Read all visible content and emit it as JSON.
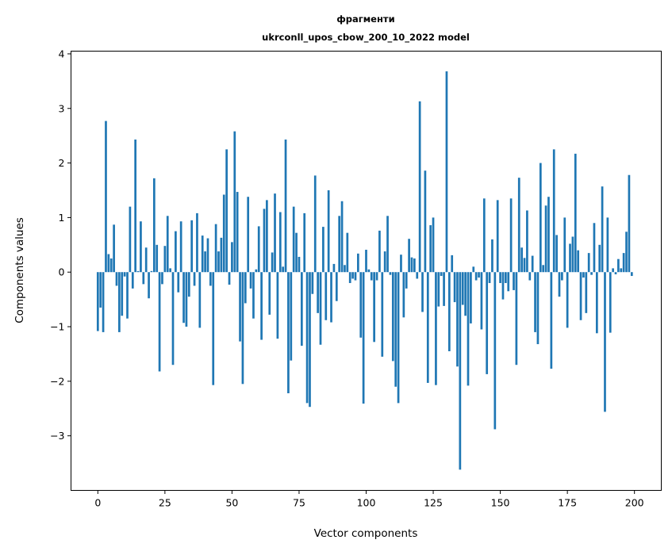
{
  "chart_data": {
    "type": "bar",
    "title": [
      "фрагменти",
      "ukrconll_upos_cbow_200_10_2022 model"
    ],
    "xlabel": "Vector components",
    "ylabel": "Components values",
    "xlim": [
      -10,
      210
    ],
    "ylim": [
      -4.0,
      4.05
    ],
    "xticks": [
      0,
      25,
      50,
      75,
      100,
      125,
      150,
      175,
      200
    ],
    "xtick_labels": [
      "0",
      "25",
      "50",
      "75",
      "100",
      "125",
      "150",
      "175",
      "200"
    ],
    "yticks": [
      -3,
      -2,
      -1,
      0,
      1,
      2,
      3,
      4
    ],
    "ytick_labels": [
      "−3",
      "−2",
      "−1",
      "0",
      "1",
      "2",
      "3",
      "4"
    ],
    "grid": false,
    "color": "#1f77b4",
    "bar_width": 0.8,
    "values": [
      -1.08,
      -0.65,
      -1.1,
      2.77,
      0.33,
      0.25,
      0.87,
      -0.25,
      -1.1,
      -0.8,
      -0.08,
      -0.85,
      1.2,
      -0.3,
      2.43,
      0.02,
      0.93,
      -0.22,
      0.45,
      -0.48,
      0.02,
      1.72,
      0.5,
      -1.82,
      -0.22,
      0.48,
      1.03,
      0.07,
      -1.7,
      0.75,
      -0.37,
      0.93,
      -0.93,
      -1.0,
      -0.45,
      0.95,
      -0.25,
      1.08,
      -1.02,
      0.67,
      0.38,
      0.62,
      -0.25,
      -2.07,
      0.88,
      0.38,
      0.63,
      1.42,
      2.25,
      -0.23,
      0.55,
      2.58,
      1.47,
      -1.27,
      -2.05,
      -0.57,
      1.38,
      -0.3,
      -0.85,
      0.05,
      0.84,
      -1.24,
      1.16,
      1.32,
      -0.78,
      0.36,
      1.44,
      -1.22,
      1.1,
      0.1,
      2.43,
      -2.22,
      -1.62,
      1.2,
      0.72,
      0.28,
      -1.35,
      1.08,
      -2.4,
      -2.47,
      -0.4,
      1.77,
      -0.75,
      -1.33,
      0.83,
      -0.88,
      1.5,
      -0.92,
      0.15,
      -0.53,
      1.03,
      1.3,
      0.13,
      0.72,
      -0.2,
      -0.12,
      -0.15,
      0.34,
      -1.2,
      -2.41,
      0.41,
      0.05,
      -0.15,
      -1.28,
      -0.15,
      0.76,
      -1.55,
      0.38,
      1.03,
      -0.05,
      -1.63,
      -2.1,
      -2.4,
      0.32,
      -0.83,
      -0.3,
      0.61,
      0.27,
      0.25,
      -0.12,
      3.13,
      -0.73,
      1.86,
      -2.03,
      0.86,
      1.0,
      -2.07,
      -0.63,
      -0.07,
      -0.62,
      3.68,
      -1.45,
      0.31,
      -0.55,
      -1.73,
      -3.62,
      -0.6,
      -0.8,
      -2.08,
      -0.94,
      0.1,
      -0.15,
      -0.1,
      -1.05,
      1.35,
      -1.87,
      -0.2,
      0.6,
      -2.88,
      1.32,
      -0.2,
      -0.5,
      -0.2,
      -0.35,
      1.35,
      -0.33,
      -1.7,
      1.73,
      0.45,
      0.26,
      1.13,
      -0.15,
      0.3,
      -1.1,
      -1.32,
      2.0,
      0.13,
      1.22,
      1.38,
      -1.77,
      2.25,
      0.68,
      -0.45,
      -0.15,
      1.0,
      -1.02,
      0.52,
      0.65,
      2.17,
      0.4,
      -0.88,
      -0.1,
      -0.75,
      0.35,
      -0.05,
      0.9,
      -1.12,
      0.5,
      1.57,
      -2.56,
      1.0,
      -1.11,
      0.07,
      -0.04,
      0.24,
      0.07,
      0.35,
      0.74,
      1.78,
      -0.07
    ]
  }
}
